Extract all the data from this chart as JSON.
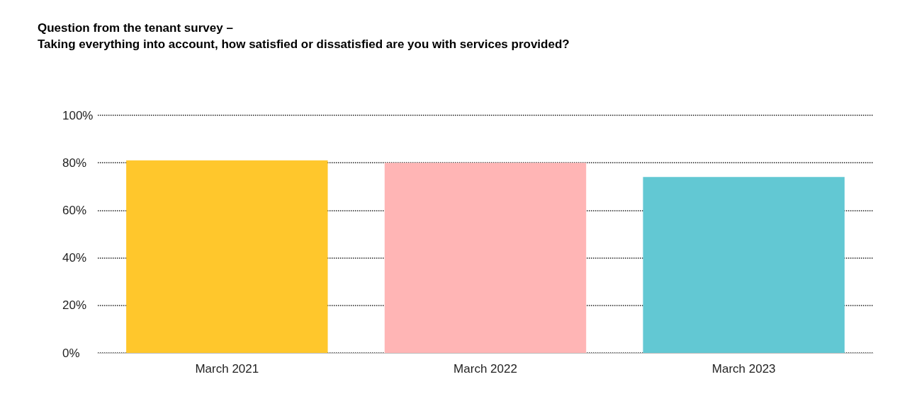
{
  "chart_data": {
    "type": "bar",
    "title": "Question from the tenant survey –",
    "subtitle": "Taking everything into account, how satisfied or dissatisfied are you with services provided?",
    "categories": [
      "March 2021",
      "March 2022",
      "March 2023"
    ],
    "values": [
      81,
      80,
      74
    ],
    "colors": [
      "#ffc72c",
      "#ffb5b5",
      "#62c8d3"
    ],
    "ylim": [
      0,
      100
    ],
    "yticks": [
      {
        "value": 0,
        "label": "0%"
      },
      {
        "value": 20,
        "label": "20%"
      },
      {
        "value": 40,
        "label": "40%"
      },
      {
        "value": 60,
        "label": "60%"
      },
      {
        "value": 80,
        "label": "80%"
      },
      {
        "value": 100,
        "label": "100%"
      }
    ],
    "grid": "y"
  }
}
